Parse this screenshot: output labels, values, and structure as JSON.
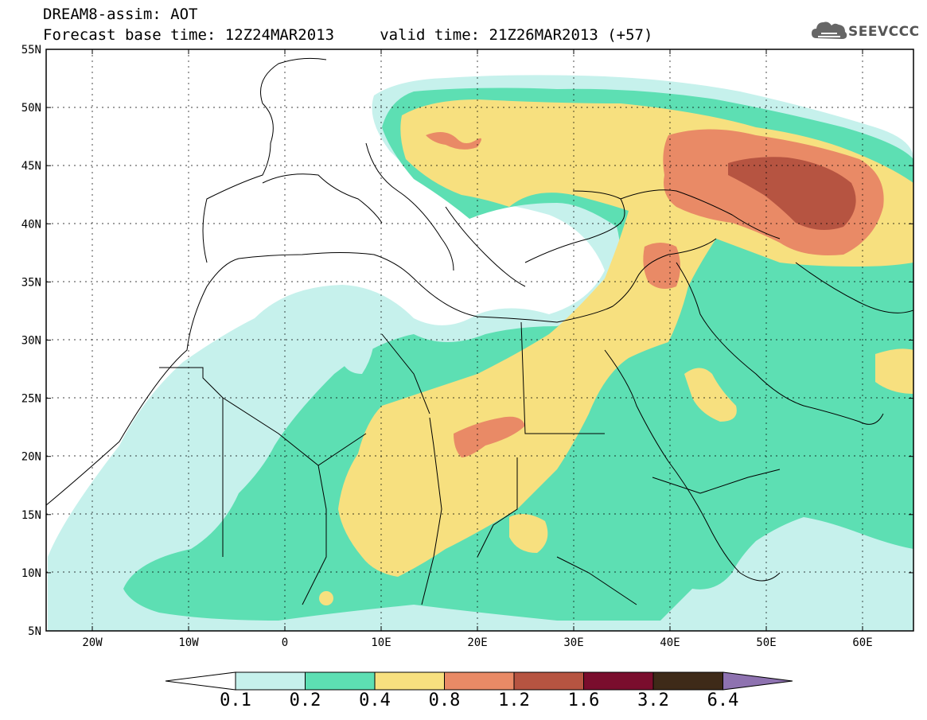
{
  "title": {
    "line1": "DREAM8-assim: AOT",
    "line2": "Forecast base time: 12Z24MAR2013     valid time: 21Z26MAR2013 (+57)"
  },
  "logo": {
    "text": "SEEVCCC",
    "icon": "cloud-icon"
  },
  "axes": {
    "lat_labels": [
      "55N",
      "50N",
      "45N",
      "40N",
      "35N",
      "30N",
      "25N",
      "20N",
      "15N",
      "10N",
      "5N"
    ],
    "lon_labels": [
      "20W",
      "10W",
      "0",
      "10E",
      "20E",
      "30E",
      "40E",
      "50E",
      "60E"
    ],
    "lat_range": [
      5,
      55
    ],
    "lon_range": [
      -25,
      65
    ]
  },
  "colorbar": {
    "labels": [
      "0.1",
      "0.2",
      "0.4",
      "0.8",
      "1.2",
      "1.6",
      "3.2",
      "6.4"
    ],
    "colors": [
      "#ffffff",
      "#c6f1ec",
      "#5ddfb3",
      "#f7e07f",
      "#e98a66",
      "#b65441",
      "#7a0d2d",
      "#3e2a18",
      "#8e72b0"
    ]
  }
}
